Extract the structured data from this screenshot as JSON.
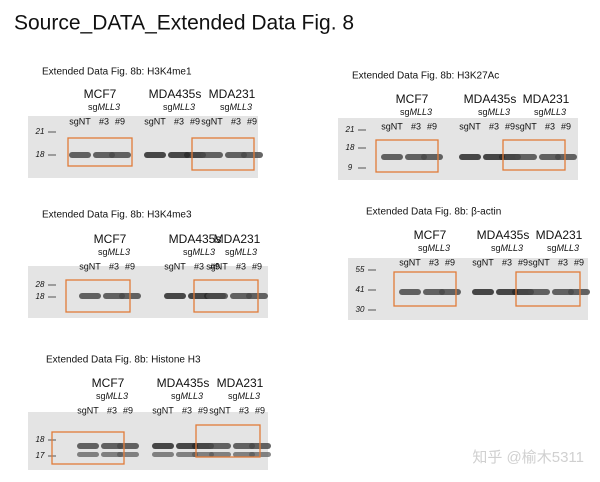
{
  "title": "Source_DATA_Extended Data Fig. 8",
  "panels": [
    {
      "caption": "Extended Data Fig. 8b: H3K4me1",
      "groups": [
        {
          "name": "MCF7",
          "sg": {
            "prefix": "sg",
            "gene": "MLL3"
          },
          "lanes": [
            "sgNT",
            "#3",
            "#9"
          ]
        },
        {
          "name": "MDA435s",
          "sg": {
            "prefix": "sg",
            "gene": "MLL3"
          },
          "lanes": [
            "sgNT",
            "#3",
            "#9"
          ]
        },
        {
          "name": "MDA231",
          "sg": {
            "prefix": "sg",
            "gene": "MLL3"
          },
          "lanes": [
            "sgNT",
            "#3",
            "#9"
          ]
        }
      ],
      "markers": [
        "21",
        "18"
      ]
    },
    {
      "caption": "Extended Data Fig. 8b: H3K27Ac",
      "groups": [
        {
          "name": "MCF7",
          "sg": {
            "prefix": "sg",
            "gene": "MLL3"
          },
          "lanes": [
            "sgNT",
            "#3",
            "#9"
          ]
        },
        {
          "name": "MDA435s",
          "sg": {
            "prefix": "sg",
            "gene": "MLL3"
          },
          "lanes": [
            "sgNT",
            "#3",
            "#9"
          ]
        },
        {
          "name": "MDA231",
          "sg": {
            "prefix": "sg",
            "gene": "MLL3"
          },
          "lanes": [
            "sgNT",
            "#3",
            "#9"
          ]
        }
      ],
      "markers": [
        "21",
        "18",
        "9"
      ]
    },
    {
      "caption": "Extended Data Fig. 8b: H3K4me3",
      "groups": [
        {
          "name": "MCF7",
          "sg": {
            "prefix": "sg",
            "gene": "MLL3"
          },
          "lanes": [
            "sgNT",
            "#3",
            "#9"
          ]
        },
        {
          "name": "MDA435s",
          "sg": {
            "prefix": "sg",
            "gene": "MLL3"
          },
          "lanes": [
            "sgNT",
            "#3",
            "#9"
          ]
        },
        {
          "name": "MDA231",
          "sg": {
            "prefix": "sg",
            "gene": "MLL3"
          },
          "lanes": [
            "sgNT",
            "#3",
            "#9"
          ]
        }
      ],
      "markers": [
        "28",
        "18"
      ]
    },
    {
      "caption": "Extended Data Fig. 8b: β-actin",
      "groups": [
        {
          "name": "MCF7",
          "sg": {
            "prefix": "sg",
            "gene": "MLL3"
          },
          "lanes": [
            "sgNT",
            "#3",
            "#9"
          ]
        },
        {
          "name": "MDA435s",
          "sg": {
            "prefix": "sg",
            "gene": "MLL3"
          },
          "lanes": [
            "sgNT",
            "#3",
            "#9"
          ]
        },
        {
          "name": "MDA231",
          "sg": {
            "prefix": "sg",
            "gene": "MLL3"
          },
          "lanes": [
            "sgNT",
            "#3",
            "#9"
          ]
        }
      ],
      "markers": [
        "55",
        "41",
        "30"
      ]
    },
    {
      "caption": "Extended Data Fig. 8b: Histone H3",
      "groups": [
        {
          "name": "MCF7",
          "sg": {
            "prefix": "sg",
            "gene": "MLL3"
          },
          "lanes": [
            "sgNT",
            "#3",
            "#9"
          ]
        },
        {
          "name": "MDA435s",
          "sg": {
            "prefix": "sg",
            "gene": "MLL3"
          },
          "lanes": [
            "sgNT",
            "#3",
            "#9"
          ]
        },
        {
          "name": "MDA231",
          "sg": {
            "prefix": "sg",
            "gene": "MLL3"
          },
          "lanes": [
            "sgNT",
            "#3",
            "#9"
          ]
        }
      ],
      "markers": [
        "18",
        "17"
      ]
    }
  ],
  "watermark": "知乎 @榆木5311"
}
